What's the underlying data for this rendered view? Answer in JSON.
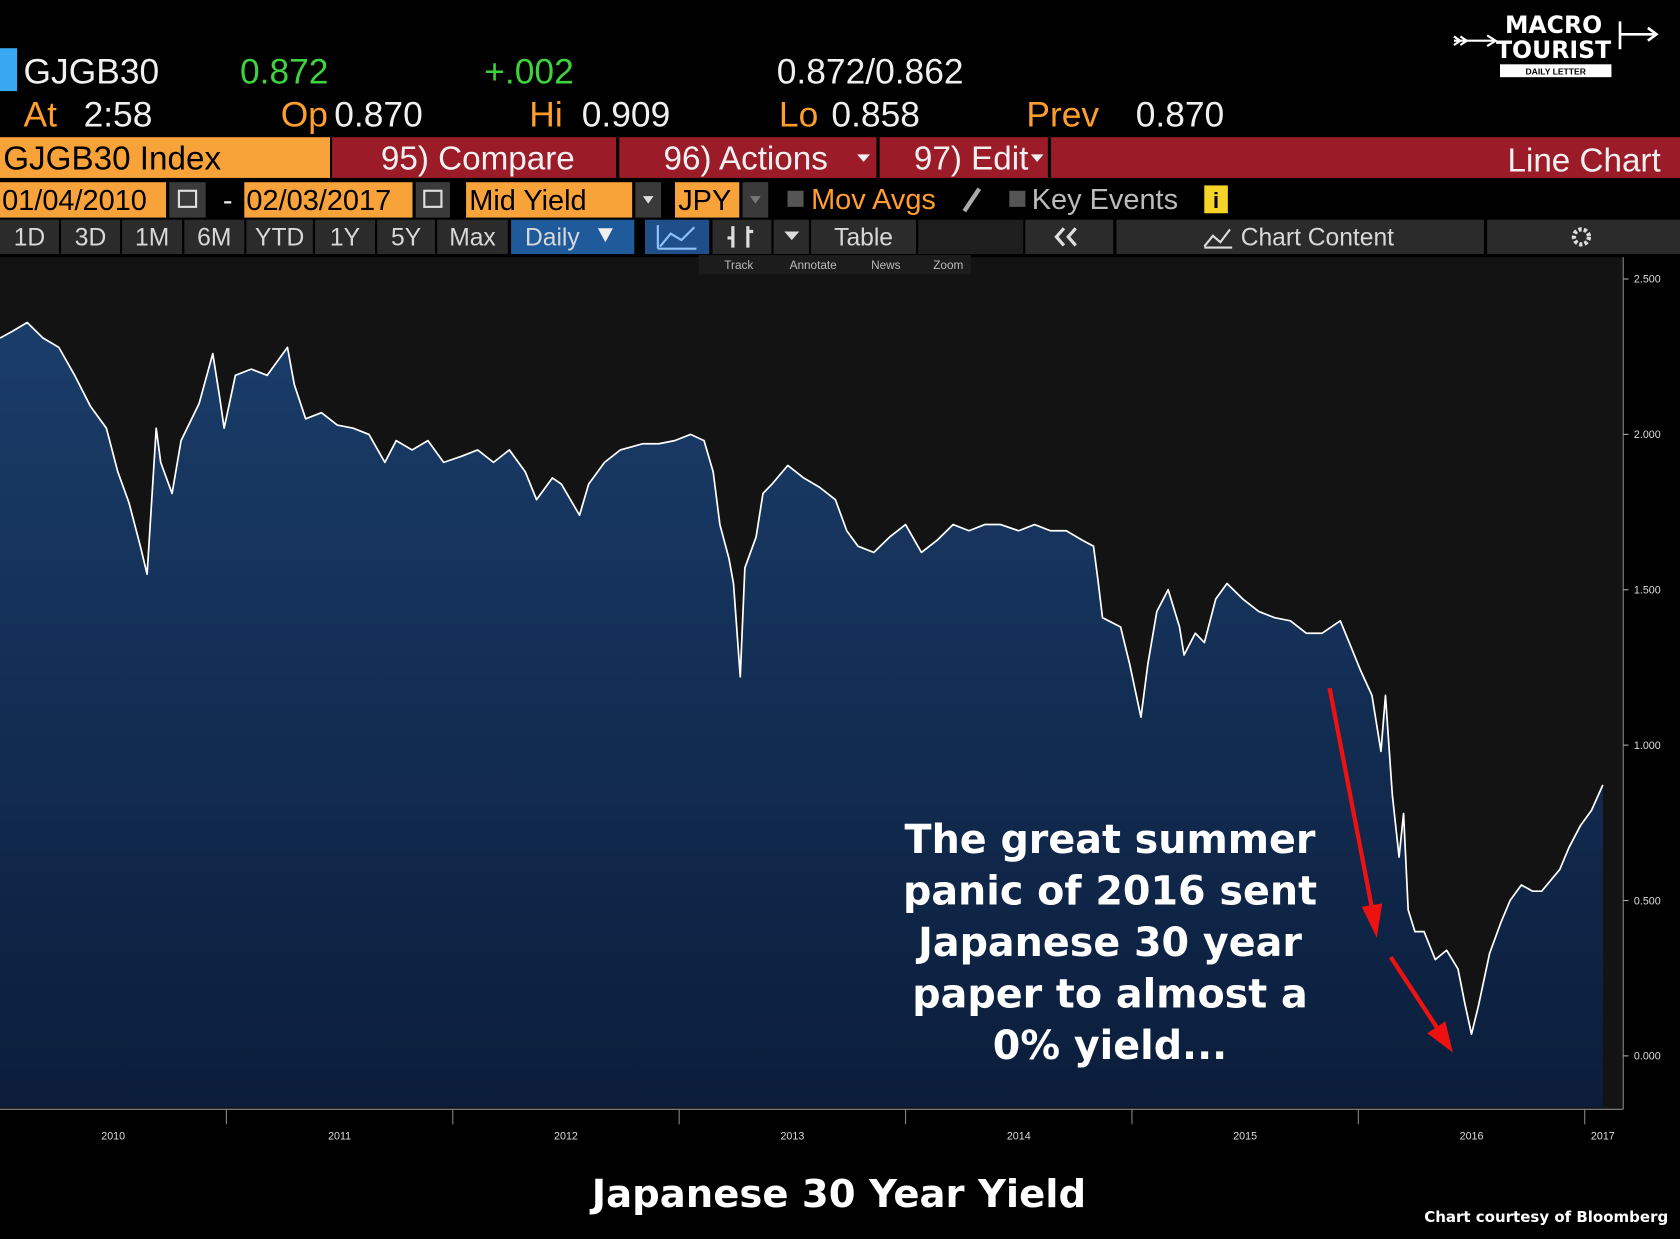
{
  "header": {
    "ticker": "GJGB30",
    "last": "0.872",
    "change": "+.002",
    "bid_ask": "0.872/0.862",
    "quotes": [
      {
        "label": "At",
        "value": "2:58"
      },
      {
        "label": "Op",
        "value": "0.870"
      },
      {
        "label": "Hi",
        "value": "0.909"
      },
      {
        "label": "Lo",
        "value": "0.858"
      },
      {
        "label": "Prev",
        "value": "0.870"
      }
    ]
  },
  "toolbar": {
    "security": "GJGB30 Index",
    "menus": [
      "95) Compare",
      "96) Actions",
      "97) Edit"
    ],
    "view": "Line Chart"
  },
  "settings": {
    "start_date": "01/04/2010",
    "date_separator": "-",
    "end_date": "02/03/2017",
    "field": "Mid Yield",
    "currency": "JPY",
    "options": [
      "Mov Avgs",
      "Key Events"
    ],
    "info": "i"
  },
  "periods": [
    "1D",
    "3D",
    "1M",
    "6M",
    "YTD",
    "1Y",
    "5Y",
    "Max"
  ],
  "frequency": "Daily",
  "tools": {
    "table": "Table",
    "chart_content": "Chart Content",
    "mini": [
      "Track",
      "Annotate",
      "News",
      "Zoom"
    ]
  },
  "logo": {
    "line1": "MACRO",
    "line2": "TOURIST",
    "tagline": "DAILY LETTER"
  },
  "chart_data": {
    "type": "area",
    "title": "Japanese 30 Year Yield",
    "annotation": [
      "The great summer",
      "panic of 2016 sent",
      "Japanese 30 year",
      "paper to almost a",
      "0% yield..."
    ],
    "credit": "Chart courtesy of Bloomberg",
    "color": "#ffffff",
    "x": [
      2010.0,
      2010.05,
      2010.12,
      2010.19,
      2010.26,
      2010.33,
      2010.4,
      2010.47,
      2010.52,
      2010.57,
      2010.62,
      2010.65,
      2010.69,
      2010.71,
      2010.76,
      2010.8,
      2010.88,
      2010.94,
      2010.97,
      2010.99,
      2011.04,
      2011.11,
      2011.18,
      2011.27,
      2011.3,
      2011.35,
      2011.42,
      2011.49,
      2011.56,
      2011.63,
      2011.7,
      2011.75,
      2011.82,
      2011.89,
      2011.96,
      2012.04,
      2012.11,
      2012.18,
      2012.25,
      2012.32,
      2012.37,
      2012.44,
      2012.48,
      2012.56,
      2012.6,
      2012.67,
      2012.74,
      2012.84,
      2012.91,
      2012.98,
      2013.05,
      2013.11,
      2013.15,
      2013.18,
      2013.22,
      2013.24,
      2013.27,
      2013.29,
      2013.34,
      2013.37,
      2013.41,
      2013.48,
      2013.55,
      2013.62,
      2013.69,
      2013.74,
      2013.79,
      2013.86,
      2013.93,
      2014.0,
      2014.07,
      2014.14,
      2014.21,
      2014.28,
      2014.35,
      2014.42,
      2014.5,
      2014.57,
      2014.64,
      2014.71,
      2014.78,
      2014.83,
      2014.85,
      2014.87,
      2014.95,
      2014.99,
      2015.04,
      2015.07,
      2015.11,
      2015.16,
      2015.21,
      2015.23,
      2015.28,
      2015.32,
      2015.37,
      2015.42,
      2015.49,
      2015.56,
      2015.63,
      2015.7,
      2015.77,
      2015.84,
      2015.92,
      2015.96,
      2016.01,
      2016.06,
      2016.1,
      2016.12,
      2016.15,
      2016.18,
      2016.2,
      2016.22,
      2016.25,
      2016.29,
      2016.34,
      2016.39,
      2016.44,
      2016.47,
      2016.5,
      2016.53,
      2016.58,
      2016.63,
      2016.67,
      2016.72,
      2016.77,
      2016.81,
      2016.89,
      2016.93,
      2016.98,
      2017.03,
      2017.08
    ],
    "values": [
      2.31,
      2.33,
      2.36,
      2.31,
      2.28,
      2.19,
      2.09,
      2.02,
      1.88,
      1.78,
      1.64,
      1.55,
      2.02,
      1.91,
      1.81,
      1.98,
      2.1,
      2.26,
      2.12,
      2.02,
      2.19,
      2.21,
      2.19,
      2.28,
      2.16,
      2.05,
      2.07,
      2.03,
      2.02,
      2.0,
      1.91,
      1.98,
      1.95,
      1.98,
      1.91,
      1.93,
      1.95,
      1.91,
      1.95,
      1.88,
      1.79,
      1.86,
      1.84,
      1.74,
      1.84,
      1.91,
      1.95,
      1.97,
      1.97,
      1.98,
      2.0,
      1.98,
      1.88,
      1.71,
      1.6,
      1.52,
      1.22,
      1.57,
      1.67,
      1.81,
      1.84,
      1.9,
      1.86,
      1.83,
      1.79,
      1.69,
      1.64,
      1.62,
      1.67,
      1.71,
      1.62,
      1.66,
      1.71,
      1.69,
      1.71,
      1.71,
      1.69,
      1.71,
      1.69,
      1.69,
      1.66,
      1.64,
      1.53,
      1.41,
      1.38,
      1.26,
      1.09,
      1.26,
      1.43,
      1.5,
      1.38,
      1.29,
      1.36,
      1.33,
      1.47,
      1.52,
      1.47,
      1.43,
      1.41,
      1.4,
      1.36,
      1.36,
      1.4,
      1.33,
      1.24,
      1.16,
      0.98,
      1.16,
      0.84,
      0.64,
      0.78,
      0.47,
      0.4,
      0.4,
      0.31,
      0.34,
      0.28,
      0.17,
      0.07,
      0.16,
      0.33,
      0.43,
      0.5,
      0.55,
      0.53,
      0.53,
      0.6,
      0.67,
      0.74,
      0.79,
      0.872
    ],
    "xlim": [
      2010.0,
      2017.17
    ],
    "xticks": [
      {
        "value": 2010.5,
        "label": "2010"
      },
      {
        "value": 2011.5,
        "label": "2011"
      },
      {
        "value": 2012.5,
        "label": "2012"
      },
      {
        "value": 2013.5,
        "label": "2013"
      },
      {
        "value": 2014.5,
        "label": "2014"
      },
      {
        "value": 2015.5,
        "label": "2015"
      },
      {
        "value": 2016.5,
        "label": "2016"
      },
      {
        "value": 2017.08,
        "label": "2017"
      }
    ],
    "minor_xticks": [
      2011,
      2012,
      2013,
      2014,
      2015,
      2016,
      2017
    ],
    "ylim": [
      -0.165,
      2.57
    ],
    "yticks": [
      {
        "value": 0,
        "label": "0.000"
      },
      {
        "value": 0.5,
        "label": "0.500"
      },
      {
        "value": 1,
        "label": "1.000"
      },
      {
        "value": 1.5,
        "label": "1.500"
      },
      {
        "value": 2,
        "label": "2.000"
      },
      {
        "value": 2.5,
        "label": "2.500"
      }
    ]
  }
}
